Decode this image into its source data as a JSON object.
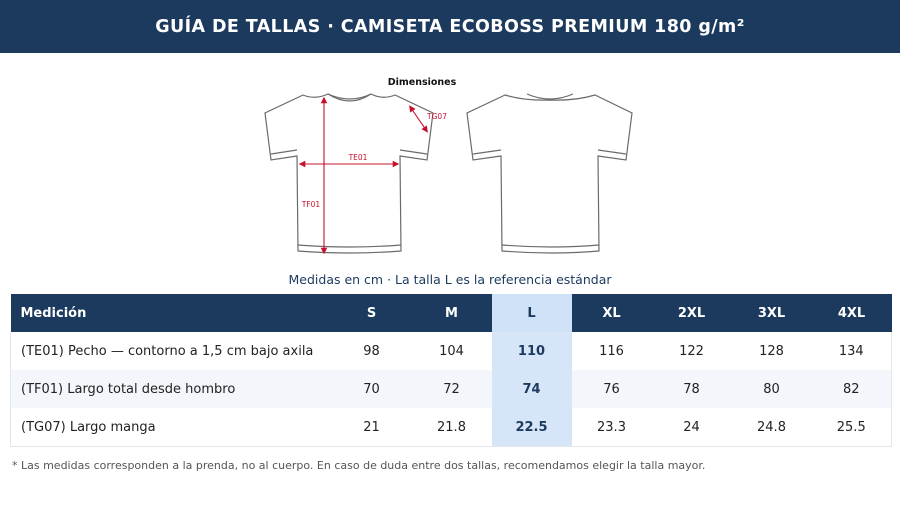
{
  "header": {
    "title": "GUÍA DE TALLAS · CAMISETA ECOBOSS PREMIUM 180 g/m²"
  },
  "figure": {
    "title": "Dimensiones",
    "labels": {
      "te": "TE01",
      "tf": "TF01",
      "tg": "TG07"
    },
    "colors": {
      "outline": "#6b6b6b",
      "measure": "#c8102e"
    }
  },
  "caption": "Medidas en cm · La talla L es la referencia estándar",
  "table": {
    "header_label": "Medición",
    "sizes": [
      "S",
      "M",
      "L",
      "XL",
      "2XL",
      "3XL",
      "4XL"
    ],
    "highlight_size": "L",
    "rows": [
      {
        "label": "(TE01)  Pecho — contorno a 1,5 cm bajo axila",
        "values": [
          "98",
          "104",
          "110",
          "116",
          "122",
          "128",
          "134"
        ]
      },
      {
        "label": "(TF01)  Largo total desde hombro",
        "values": [
          "70",
          "72",
          "74",
          "76",
          "78",
          "80",
          "82"
        ]
      },
      {
        "label": "(TG07)  Largo manga",
        "values": [
          "21",
          "21.8",
          "22.5",
          "23.3",
          "24",
          "24.8",
          "25.5"
        ]
      }
    ]
  },
  "footnote": "* Las medidas corresponden a la prenda, no al cuerpo. En caso de duda entre dos tallas, recomendamos elegir la talla mayor.",
  "colors": {
    "header_bg": "#1b3a5e",
    "highlight_bg": "#d6e6f8"
  }
}
